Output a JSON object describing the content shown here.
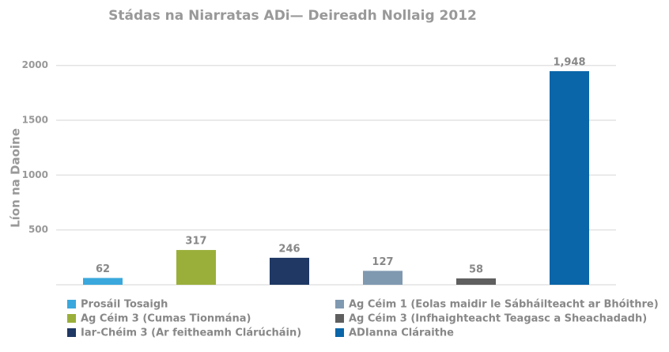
{
  "chart_data": {
    "type": "bar",
    "title": "Stádas na Niarratas ADi— Deireadh Nollaig 2012",
    "y_label": "Líon na Daoine",
    "series": [
      {
        "name": "Prosáil Tosaigh",
        "color": "#3aa8dc",
        "values": [
          62
        ]
      },
      {
        "name": "Ag Céim 3 (Cumas Tionmána)",
        "color": "#9aaf3a",
        "values": [
          317
        ]
      },
      {
        "name": "Iar-Chéim 3 (Ar feitheamh Clárúcháin)",
        "color": "#1f3864",
        "values": [
          246
        ]
      },
      {
        "name": "Ag Céim 1 (Eolas maidir le Sábháilteacht ar Bhóithre)",
        "color": "#7f99b0",
        "values": [
          127
        ]
      },
      {
        "name": "Ag Céim 3 (Infhaighteacht Teagasc a Sheachadadh)",
        "color": "#5f5f5f",
        "values": [
          58
        ]
      },
      {
        "name": "ADIanna Cláraithe",
        "color": "#0a66a8",
        "values": [
          1948
        ],
        "value_labels": [
          "1,948"
        ]
      }
    ],
    "ylim": [
      0,
      2200
    ],
    "yticks": [
      500,
      1000,
      1500,
      2000
    ],
    "grid": true
  }
}
